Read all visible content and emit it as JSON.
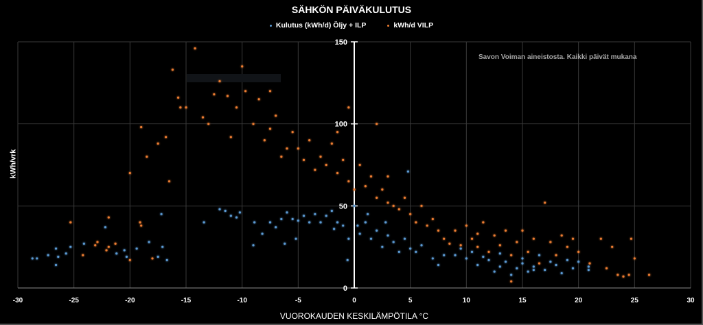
{
  "chart_data": {
    "type": "scatter",
    "title": "SÄHKÖN PÄIVÄKULUTUS",
    "xlabel": "VUOROKAUDEN KESKILÄMPÖTILA °C",
    "ylabel": "kWh/vrk",
    "xlim": [
      -30,
      30
    ],
    "ylim": [
      0,
      150
    ],
    "xticks": [
      "-30",
      "-25",
      "-20",
      "-15",
      "-10",
      "-5",
      "0",
      "5",
      "10",
      "15",
      "20",
      "25",
      "30"
    ],
    "yticks": [
      "0",
      "50",
      "100",
      "150"
    ],
    "grid": true,
    "legend_position": "top",
    "annotation": "Savon Voiman aineistosta. Kaikki päivät mukana",
    "series": [
      {
        "name": "Kulutus (kWh/d) Öljy + ILP",
        "color": "#5b9bd5",
        "points": [
          [
            -28.7,
            18
          ],
          [
            -28.3,
            18
          ],
          [
            -27.3,
            20
          ],
          [
            -26.6,
            24
          ],
          [
            -26.4,
            19
          ],
          [
            -26.6,
            14
          ],
          [
            -25.7,
            21
          ],
          [
            -25.3,
            25
          ],
          [
            -24.1,
            27
          ],
          [
            -22.2,
            37
          ],
          [
            -21.2,
            21
          ],
          [
            -20.5,
            23
          ],
          [
            -20.3,
            19
          ],
          [
            -19.4,
            24
          ],
          [
            -18.3,
            28
          ],
          [
            -17.1,
            25
          ],
          [
            -17.5,
            19
          ],
          [
            -17.2,
            45
          ],
          [
            -16.7,
            17
          ],
          [
            -13.4,
            40
          ],
          [
            -12,
            48
          ],
          [
            -11.5,
            47
          ],
          [
            -11,
            44
          ],
          [
            -10.5,
            43
          ],
          [
            -10.2,
            46
          ],
          [
            -9,
            26
          ],
          [
            -8.9,
            40
          ],
          [
            -8.2,
            33
          ],
          [
            -7.5,
            40
          ],
          [
            -7,
            37
          ],
          [
            -6.5,
            42
          ],
          [
            -6.2,
            27
          ],
          [
            -6,
            46
          ],
          [
            -5.5,
            42
          ],
          [
            -5.2,
            30
          ],
          [
            -5,
            41
          ],
          [
            -4.5,
            44
          ],
          [
            -4,
            40
          ],
          [
            -3.5,
            45
          ],
          [
            -3,
            40
          ],
          [
            -2.5,
            44
          ],
          [
            -2,
            47
          ],
          [
            -1.5,
            40
          ],
          [
            -1,
            38
          ],
          [
            -0.5,
            30
          ],
          [
            -0.6,
            17
          ],
          [
            0,
            50
          ],
          [
            0.3,
            38
          ],
          [
            0.5,
            33
          ],
          [
            1,
            40
          ],
          [
            1.5,
            30
          ],
          [
            2,
            35
          ],
          [
            2.5,
            25
          ],
          [
            3,
            32
          ],
          [
            3.5,
            28
          ],
          [
            4,
            22
          ],
          [
            4.5,
            30
          ],
          [
            5,
            24
          ],
          [
            5.5,
            22
          ],
          [
            6,
            26
          ],
          [
            7,
            18
          ],
          [
            7.5,
            14
          ],
          [
            8,
            20
          ],
          [
            9,
            20
          ],
          [
            10,
            18
          ],
          [
            10.5,
            22
          ],
          [
            11,
            14
          ],
          [
            12,
            17
          ],
          [
            12.5,
            10
          ],
          [
            13,
            13
          ],
          [
            13.5,
            16
          ],
          [
            14,
            8
          ],
          [
            14.5,
            12
          ],
          [
            15,
            18
          ],
          [
            15.5,
            10
          ],
          [
            16,
            13
          ],
          [
            16.5,
            20
          ],
          [
            17,
            11
          ],
          [
            17.5,
            16
          ],
          [
            18,
            14
          ],
          [
            18.5,
            9
          ],
          [
            19,
            17
          ],
          [
            19.5,
            12
          ],
          [
            20,
            16
          ],
          [
            20.9,
            13
          ],
          [
            20.9,
            11
          ],
          [
            4.8,
            71
          ],
          [
            1.2,
            45
          ],
          [
            2.8,
            40
          ],
          [
            -1.8,
            36
          ],
          [
            9.5,
            24
          ],
          [
            11.5,
            19
          ],
          [
            13,
            21
          ],
          [
            15,
            15
          ],
          [
            16,
            11
          ]
        ]
      },
      {
        "name": "kWh/d VILP",
        "color": "#ed7d31",
        "points": [
          [
            -25.3,
            40
          ],
          [
            -24.2,
            20
          ],
          [
            -23.1,
            26
          ],
          [
            -22.9,
            28
          ],
          [
            -22.1,
            23
          ],
          [
            -21.9,
            43
          ],
          [
            -21.9,
            25
          ],
          [
            -21.3,
            27
          ],
          [
            -20,
            17
          ],
          [
            -19.1,
            40
          ],
          [
            -19,
            38
          ],
          [
            -18,
            18
          ],
          [
            -20,
            70
          ],
          [
            -19,
            98
          ],
          [
            -18.5,
            80
          ],
          [
            -17.5,
            88
          ],
          [
            -16.8,
            92
          ],
          [
            -16.5,
            65
          ],
          [
            -16.2,
            133
          ],
          [
            -15.7,
            116
          ],
          [
            -15.5,
            110
          ],
          [
            -15,
            110
          ],
          [
            -14.2,
            146
          ],
          [
            -13.5,
            104
          ],
          [
            -13,
            100
          ],
          [
            -12.5,
            118
          ],
          [
            -12,
            126
          ],
          [
            -11.3,
            117
          ],
          [
            -11,
            92
          ],
          [
            -10.5,
            110
          ],
          [
            -10,
            135
          ],
          [
            -9.7,
            120
          ],
          [
            -9,
            100
          ],
          [
            -8.5,
            115
          ],
          [
            -8,
            90
          ],
          [
            -7.5,
            97
          ],
          [
            -7,
            105
          ],
          [
            -6.5,
            80
          ],
          [
            -6,
            85
          ],
          [
            -5.5,
            95
          ],
          [
            -5,
            85
          ],
          [
            -4.5,
            78
          ],
          [
            -4,
            90
          ],
          [
            -3.5,
            72
          ],
          [
            -3,
            80
          ],
          [
            -2.5,
            75
          ],
          [
            -2,
            88
          ],
          [
            -1.5,
            70
          ],
          [
            -1,
            78
          ],
          [
            -0.5,
            65
          ],
          [
            0,
            60
          ],
          [
            0.5,
            75
          ],
          [
            1,
            62
          ],
          [
            1.5,
            68
          ],
          [
            2,
            55
          ],
          [
            2.5,
            60
          ],
          [
            3,
            52
          ],
          [
            3.5,
            50
          ],
          [
            4,
            48
          ],
          [
            4.5,
            55
          ],
          [
            5,
            45
          ],
          [
            5.5,
            40
          ],
          [
            6,
            50
          ],
          [
            6.5,
            38
          ],
          [
            7,
            42
          ],
          [
            7.5,
            35
          ],
          [
            8,
            30
          ],
          [
            9,
            35
          ],
          [
            9.5,
            26
          ],
          [
            10,
            38
          ],
          [
            10.5,
            30
          ],
          [
            11,
            25
          ],
          [
            11.5,
            40
          ],
          [
            12,
            22
          ],
          [
            12.5,
            32
          ],
          [
            13,
            26
          ],
          [
            13.5,
            35
          ],
          [
            14,
            20
          ],
          [
            14.5,
            28
          ],
          [
            15,
            35
          ],
          [
            15.5,
            22
          ],
          [
            16,
            30
          ],
          [
            16.5,
            15
          ],
          [
            17,
            52
          ],
          [
            17.5,
            28
          ],
          [
            18,
            20
          ],
          [
            18.5,
            32
          ],
          [
            19,
            25
          ],
          [
            19.5,
            30
          ],
          [
            20,
            22
          ],
          [
            21,
            15
          ],
          [
            22,
            30
          ],
          [
            22.5,
            12
          ],
          [
            23,
            25
          ],
          [
            23.5,
            8
          ],
          [
            24,
            7
          ],
          [
            24.5,
            8
          ],
          [
            24.7,
            30
          ],
          [
            25,
            18
          ],
          [
            26.3,
            8
          ],
          [
            -7.5,
            120
          ],
          [
            2,
            100
          ],
          [
            -0.5,
            110
          ],
          [
            -1.5,
            95
          ],
          [
            14,
            4
          ],
          [
            8.5,
            27
          ],
          [
            11,
            33
          ],
          [
            3,
            68
          ]
        ]
      }
    ]
  }
}
